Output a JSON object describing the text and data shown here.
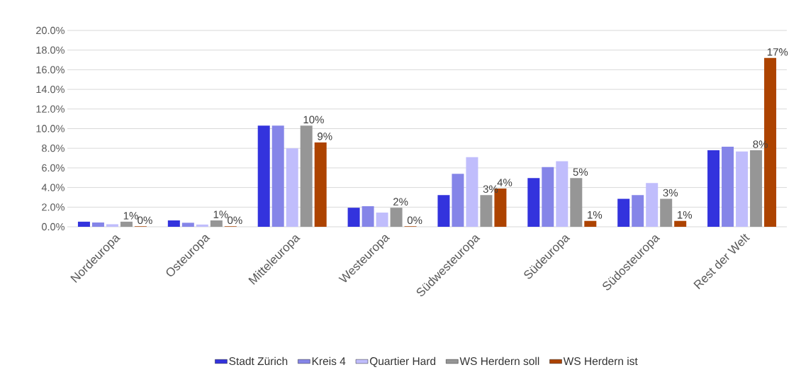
{
  "chart_data": {
    "type": "bar",
    "categories": [
      "Nordeuropa",
      "Osteuropa",
      "Mitteleuropa",
      "Westeuropa",
      "Südwesteuropa",
      "Südeuropa",
      "Südosteuropa",
      "Rest der Welt"
    ],
    "series": [
      {
        "name": "Stadt Zürich",
        "color": "#3333dd",
        "values": [
          0.52,
          0.65,
          10.3,
          1.94,
          3.23,
          4.97,
          2.85,
          7.79
        ]
      },
      {
        "name": "Kreis 4",
        "color": "#8585e8",
        "values": [
          0.44,
          0.41,
          10.3,
          2.1,
          5.4,
          6.08,
          3.23,
          8.15
        ]
      },
      {
        "name": "Quartier Hard",
        "color": "#c0bdfc",
        "values": [
          0.26,
          0.23,
          8.0,
          1.45,
          7.1,
          6.68,
          4.45,
          7.68
        ]
      },
      {
        "name": "WS Herdern soll",
        "color": "#969696",
        "values": [
          0.52,
          0.65,
          10.3,
          1.94,
          3.23,
          4.97,
          2.85,
          7.79
        ],
        "value_labels": [
          "1%",
          "1%",
          "10%",
          "2%",
          "3%",
          "5%",
          "3%",
          "8%"
        ]
      },
      {
        "name": "WS Herdern ist",
        "color": "#ad4300",
        "values": [
          0.05,
          0.05,
          8.6,
          0.05,
          3.9,
          0.6,
          0.6,
          17.2
        ],
        "value_labels": [
          "0%",
          "0%",
          "9%",
          "0%",
          "4%",
          "1%",
          "1%",
          "17%"
        ]
      }
    ],
    "ylim": [
      0,
      20
    ],
    "yticks": [
      {
        "value": 0,
        "label": "0.0%"
      },
      {
        "value": 2,
        "label": "2.0%"
      },
      {
        "value": 4,
        "label": "4.0%"
      },
      {
        "value": 6,
        "label": "6.0%"
      },
      {
        "value": 8,
        "label": "8.0%"
      },
      {
        "value": 10,
        "label": "10.0%"
      },
      {
        "value": 12,
        "label": "12.0%"
      },
      {
        "value": 14,
        "label": "14.0%"
      },
      {
        "value": 16,
        "label": "16.0%"
      },
      {
        "value": 18,
        "label": "18.0%"
      },
      {
        "value": 20,
        "label": "20.0%"
      }
    ],
    "grid": "y",
    "legend": "bottom"
  }
}
